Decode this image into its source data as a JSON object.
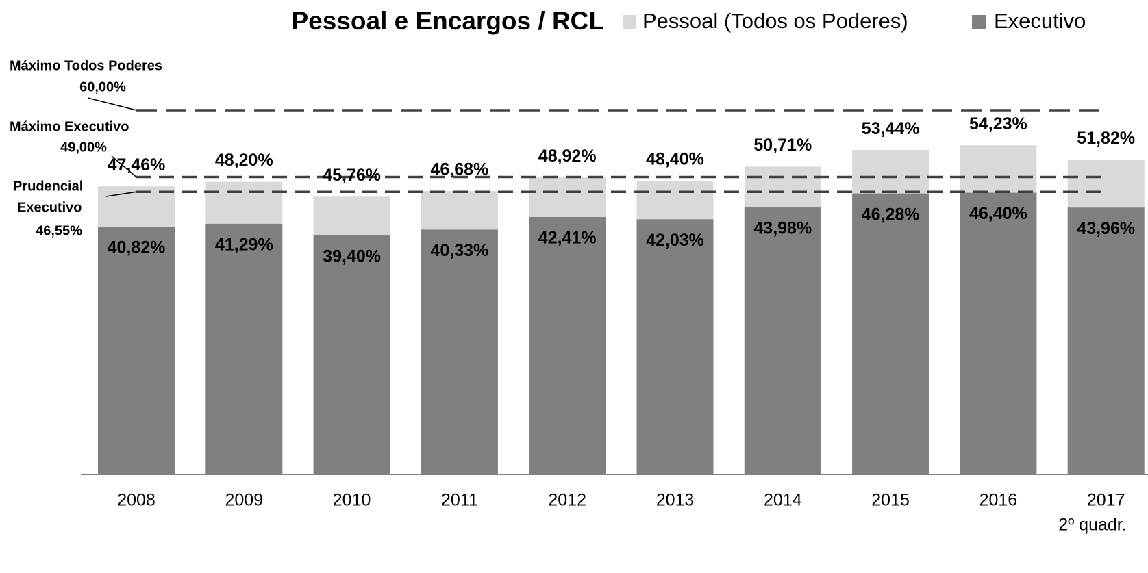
{
  "chart_data": {
    "type": "overlapping-bar",
    "title": "Pessoal e Encargos / RCL",
    "categories": [
      [
        "2008"
      ],
      [
        "2009"
      ],
      [
        "2010"
      ],
      [
        "2011"
      ],
      [
        "2012"
      ],
      [
        "2013"
      ],
      [
        "2014"
      ],
      [
        "2015"
      ],
      [
        "2016"
      ],
      [
        "2017",
        "2º quadr."
      ]
    ],
    "series": [
      {
        "name": "Pessoal (Todos os Poderes)",
        "color": "#d9d9d9",
        "values": [
          47.46,
          48.2,
          45.76,
          46.68,
          48.92,
          48.4,
          50.71,
          53.44,
          54.23,
          51.82
        ],
        "value_labels": [
          "47,46%",
          "48,20%",
          "45,76%",
          "46,68%",
          "48,92%",
          "48,40%",
          "50,71%",
          "53,44%",
          "54,23%",
          "51,82%"
        ]
      },
      {
        "name": "Executivo",
        "color": "#808080",
        "values": [
          40.82,
          41.29,
          39.4,
          40.33,
          42.41,
          42.03,
          43.98,
          46.28,
          46.4,
          43.96
        ],
        "value_labels": [
          "40,82%",
          "41,29%",
          "39,40%",
          "40,33%",
          "42,41%",
          "42,03%",
          "43,98%",
          "46,28%",
          "46,40%",
          "43,96%"
        ]
      }
    ],
    "reference_lines": [
      {
        "label": [
          "Máximo Todos Poderes"
        ],
        "value": 60,
        "value_label": "60,00%"
      },
      {
        "label": [
          "Máximo Executivo"
        ],
        "value": 49,
        "value_label": "49,00%"
      },
      {
        "label": [
          "Prudencial",
          "Executivo"
        ],
        "value": 46.55,
        "value_label": "46,55%"
      }
    ],
    "ylim": [
      0,
      60
    ],
    "legend": "top"
  }
}
